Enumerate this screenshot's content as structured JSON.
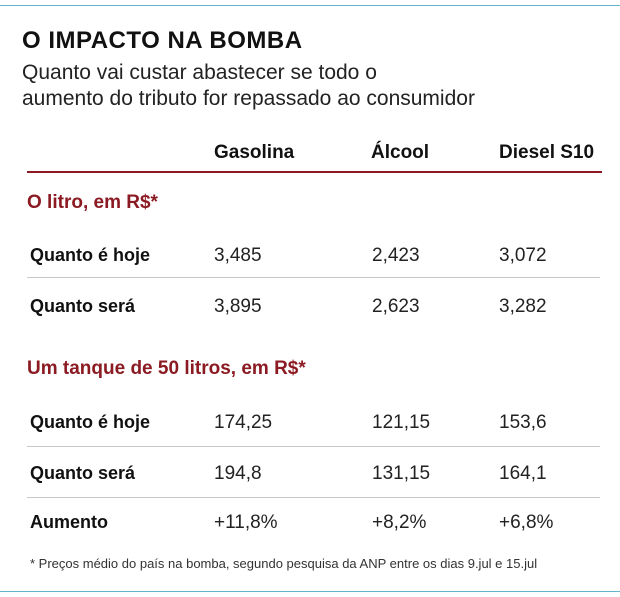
{
  "title": "O IMPACTO NA BOMBA",
  "subtitle": {
    "line1": "Quanto vai custar abastecer se todo o",
    "line2": "aumento do tributo for repassado ao consumidor"
  },
  "columns": [
    "Gasolina",
    "Álcool",
    "Diesel S10"
  ],
  "section1": {
    "heading": "O litro, em R$*",
    "rows": [
      {
        "label": "Quanto é hoje",
        "values": [
          "3,485",
          "2,423",
          "3,072"
        ]
      },
      {
        "label": "Quanto será",
        "values": [
          "3,895",
          "2,623",
          "3,282"
        ]
      }
    ]
  },
  "section2": {
    "heading": "Um tanque de 50 litros, em R$*",
    "rows": [
      {
        "label": "Quanto é hoje",
        "values": [
          "174,25",
          "121,15",
          "153,6"
        ]
      },
      {
        "label": "Quanto será",
        "values": [
          "194,8",
          "131,15",
          "164,1"
        ]
      },
      {
        "label": "Aumento",
        "values": [
          "+11,8%",
          "+8,2%",
          "+6,8%"
        ]
      }
    ]
  },
  "footnote": "* Preços médio do país na bomba, segundo pesquisa da ANP entre os dias 9.jul e 15.jul",
  "colors": {
    "accent": "#8b1a22",
    "frame": "#64b4cc"
  }
}
